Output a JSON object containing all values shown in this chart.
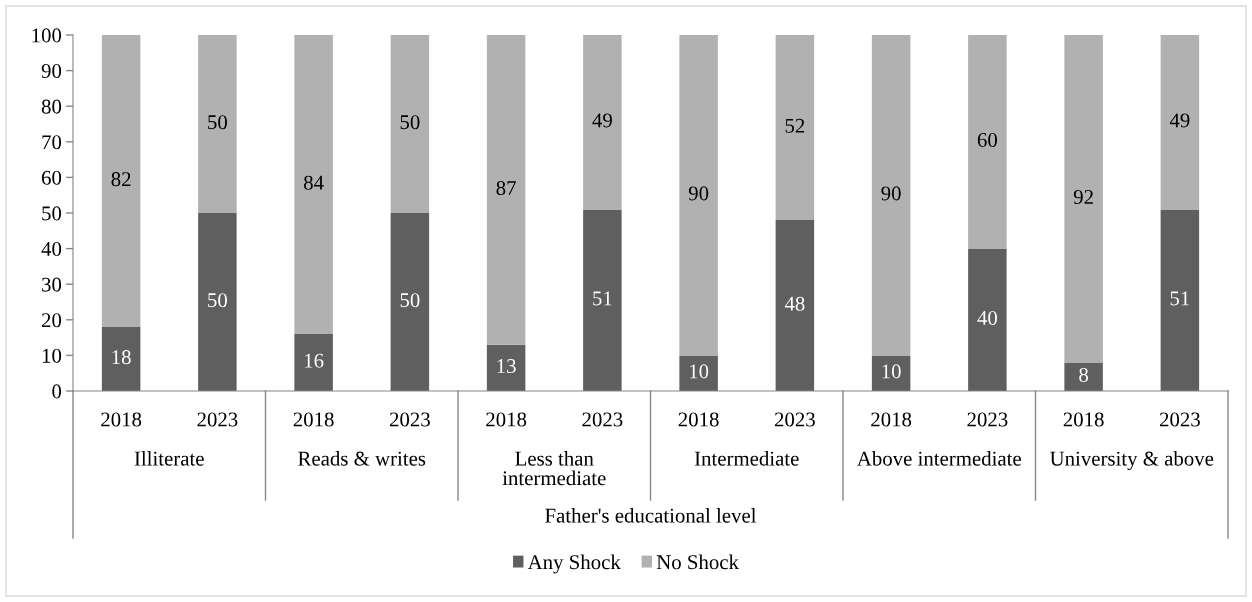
{
  "chart_data": {
    "type": "bar",
    "stacked": true,
    "xlabel": "Father's educational level",
    "categories": [
      "2018",
      "2023",
      "2018",
      "2023",
      "2018",
      "2023",
      "2018",
      "2023",
      "2018",
      "2023",
      "2018",
      "2023"
    ],
    "annotations": [
      "Illiterate",
      "Reads & writes",
      "Less than intermediate",
      "Intermediate",
      "Above intermediate",
      "University & above"
    ],
    "series": [
      {
        "name": "Any Shock",
        "color": "#5f5f5f",
        "values": [
          18,
          50,
          16,
          50,
          13,
          51,
          10,
          48,
          10,
          40,
          8,
          51
        ]
      },
      {
        "name": "No Shock",
        "color": "#b1b1b1",
        "values": [
          82,
          50,
          84,
          50,
          87,
          49,
          90,
          52,
          90,
          60,
          92,
          49
        ]
      }
    ],
    "ylim": [
      0,
      100
    ],
    "yticks": [
      0,
      10,
      20,
      30,
      40,
      50,
      60,
      70,
      80,
      90,
      100
    ],
    "data_labels": true,
    "legend": "bottom"
  }
}
